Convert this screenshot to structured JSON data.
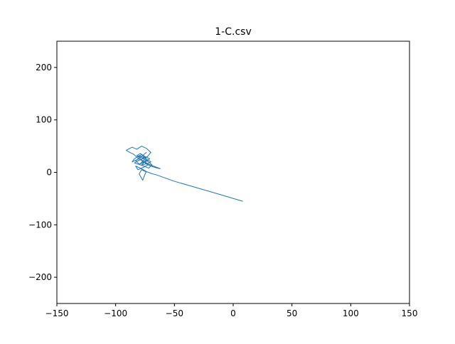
{
  "chart_data": {
    "type": "line",
    "title": "1-C.csv",
    "xlabel": "",
    "ylabel": "",
    "xlim": [
      -150,
      150
    ],
    "ylim": [
      -250,
      250
    ],
    "x_ticks": [
      -150,
      -100,
      -50,
      0,
      50,
      100,
      150
    ],
    "y_ticks": [
      -200,
      -100,
      0,
      100,
      200
    ],
    "x_tick_labels": [
      "−150",
      "−100",
      "−50",
      "0",
      "50",
      "100",
      "150"
    ],
    "y_tick_labels": [
      "−200",
      "−100",
      "0",
      "100",
      "200"
    ],
    "grid": false,
    "series": [
      {
        "color": "#1f77b4",
        "x": [
          8,
          -10,
          -30,
          -50,
          -65,
          -70,
          -72,
          -75,
          -78,
          -80,
          -77,
          -74,
          -79,
          -83,
          -81,
          -76,
          -72,
          -75,
          -80,
          -85,
          -88,
          -91,
          -86,
          -82,
          -78,
          -74,
          -70,
          -73,
          -77,
          -81,
          -84,
          -80,
          -76,
          -72,
          -69,
          -72,
          -75,
          -78,
          -82,
          -79,
          -75,
          -71,
          -73,
          -77,
          -80,
          -83,
          -79,
          -76,
          -74,
          -78,
          -82,
          -86,
          -84,
          -80,
          -76,
          -73,
          -70,
          -74,
          -78,
          -76,
          -77,
          -79,
          -81,
          -78,
          -75,
          -73,
          -76,
          -79,
          -77,
          -74,
          -76,
          -78,
          -77,
          -62,
          -66,
          -70,
          -74,
          -76,
          -78
        ],
        "y": [
          -55,
          -43,
          -30,
          -17,
          -5,
          -2,
          0,
          2,
          5,
          -3,
          -15,
          2,
          8,
          12,
          5,
          10,
          15,
          20,
          25,
          35,
          38,
          42,
          48,
          44,
          50,
          46,
          38,
          30,
          26,
          22,
          18,
          15,
          12,
          8,
          14,
          20,
          24,
          28,
          32,
          36,
          30,
          26,
          22,
          18,
          16,
          22,
          28,
          34,
          38,
          30,
          24,
          20,
          26,
          32,
          28,
          24,
          20,
          16,
          14,
          18,
          22,
          26,
          30,
          34,
          28,
          24,
          20,
          16,
          22,
          26,
          30,
          24,
          20,
          7,
          9,
          12,
          16,
          20,
          24
        ]
      }
    ]
  }
}
